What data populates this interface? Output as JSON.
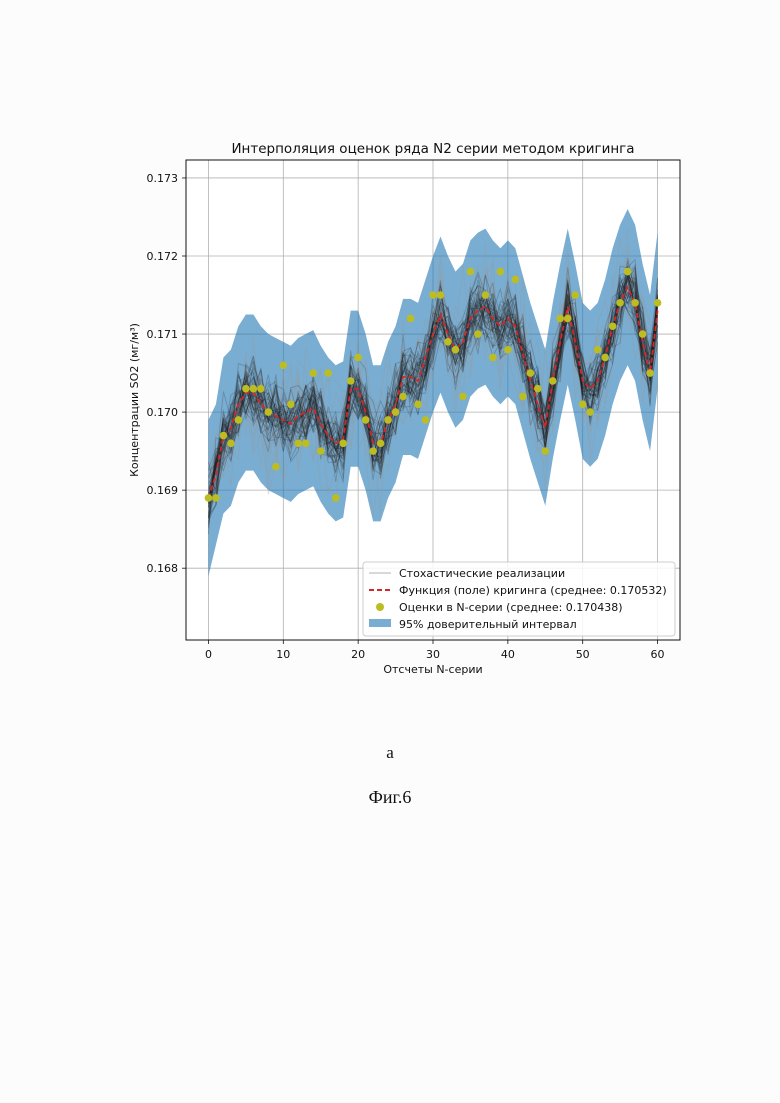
{
  "chart_data": {
    "type": "line",
    "title": "Интерполяция оценок ряда N2 серии методом кригинга",
    "xlabel": "Отсчеты N-серии",
    "ylabel": "Концентрации SO2 (мг/м³)",
    "xlim": [
      -3,
      63
    ],
    "ylim": [
      0.16708,
      0.17323
    ],
    "xticks": [
      0,
      10,
      20,
      30,
      40,
      50,
      60
    ],
    "yticks": [
      0.168,
      0.169,
      0.17,
      0.171,
      0.172,
      0.173
    ],
    "ytick_labels": [
      "0.168",
      "0.169",
      "0.170",
      "0.171",
      "0.172",
      "0.173"
    ],
    "grid": true,
    "legend_position": "lower-right",
    "legend": [
      "Стохастические реализации",
      "Функция (поле) кригинга (среднее: 0.170532)",
      "Оценки в N-серии (среднее: 0.170438)",
      "95% доверительный интервал"
    ],
    "colors": {
      "realizations": "#555555",
      "kriging": "#d62728",
      "estimates": "#bcbd22",
      "interval": "#1f77b4"
    },
    "series": [
      {
        "name": "Оценки в N-серии (среднее: 0.170438)",
        "kind": "scatter",
        "x": [
          0,
          1,
          2,
          3,
          4,
          5,
          6,
          7,
          8,
          9,
          10,
          11,
          12,
          13,
          14,
          15,
          16,
          17,
          18,
          19,
          20,
          21,
          22,
          23,
          24,
          25,
          26,
          27,
          28,
          29,
          30,
          31,
          32,
          33,
          34,
          35,
          36,
          37,
          38,
          39,
          40,
          41,
          42,
          43,
          44,
          45,
          46,
          47,
          48,
          49,
          50,
          51,
          52,
          53,
          54,
          55,
          56,
          57,
          58,
          59,
          60
        ],
        "y": [
          0.1689,
          0.1689,
          0.1697,
          0.1696,
          0.1699,
          0.1703,
          0.1703,
          0.1703,
          0.17,
          0.1693,
          0.1706,
          0.1701,
          0.1696,
          0.1696,
          0.1705,
          0.1695,
          0.1705,
          0.1689,
          0.1696,
          0.1704,
          0.1707,
          0.1699,
          0.1695,
          0.1696,
          0.1699,
          0.17,
          0.1702,
          0.1712,
          0.1701,
          0.1699,
          0.1715,
          0.1715,
          0.1709,
          0.1708,
          0.1702,
          0.1718,
          0.171,
          0.1715,
          0.1707,
          0.1718,
          0.1708,
          0.1717,
          0.1702,
          0.1705,
          0.1703,
          0.1695,
          0.1704,
          0.1712,
          0.1712,
          0.1715,
          0.1701,
          0.17,
          0.1708,
          0.1707,
          0.1711,
          0.1714,
          0.1718,
          0.1714,
          0.171,
          0.1705,
          0.1714
        ]
      },
      {
        "name": "Функция (поле) кригинга (среднее: 0.170532)",
        "kind": "line",
        "x": [
          0,
          1,
          2,
          3,
          4,
          5,
          6,
          7,
          8,
          9,
          10,
          11,
          12,
          13,
          14,
          15,
          16,
          17,
          18,
          19,
          20,
          21,
          22,
          23,
          24,
          25,
          26,
          27,
          28,
          29,
          30,
          31,
          32,
          33,
          34,
          35,
          36,
          37,
          38,
          39,
          40,
          41,
          42,
          43,
          44,
          45,
          46,
          47,
          48,
          49,
          50,
          51,
          52,
          53,
          54,
          55,
          56,
          57,
          58,
          59,
          60
        ],
        "y": [
          0.1689,
          0.1692,
          0.1697,
          0.1698,
          0.1701,
          0.17025,
          0.17025,
          0.1701,
          0.17,
          0.16995,
          0.1699,
          0.16985,
          0.16995,
          0.17,
          0.17005,
          0.16985,
          0.1697,
          0.1696,
          0.16965,
          0.1703,
          0.1703,
          0.17,
          0.1696,
          0.1696,
          0.1699,
          0.1701,
          0.17045,
          0.17045,
          0.1704,
          0.1707,
          0.171,
          0.17125,
          0.171,
          0.1708,
          0.1709,
          0.1712,
          0.1713,
          0.17135,
          0.1712,
          0.1711,
          0.1712,
          0.1711,
          0.17075,
          0.1704,
          0.1701,
          0.1698,
          0.1704,
          0.1709,
          0.17135,
          0.1709,
          0.1704,
          0.1703,
          0.1704,
          0.1707,
          0.1711,
          0.1714,
          0.1716,
          0.1714,
          0.1709,
          0.1705,
          0.1713
        ]
      },
      {
        "name": "95% доверительный интервал",
        "kind": "band",
        "x": [
          0,
          1,
          2,
          3,
          4,
          5,
          6,
          7,
          8,
          9,
          10,
          11,
          12,
          13,
          14,
          15,
          16,
          17,
          18,
          19,
          20,
          21,
          22,
          23,
          24,
          25,
          26,
          27,
          28,
          29,
          30,
          31,
          32,
          33,
          34,
          35,
          36,
          37,
          38,
          39,
          40,
          41,
          42,
          43,
          44,
          45,
          46,
          47,
          48,
          49,
          50,
          51,
          52,
          53,
          54,
          55,
          56,
          57,
          58,
          59,
          60
        ],
        "lower": [
          0.1679,
          0.1683,
          0.1687,
          0.1688,
          0.1691,
          0.16925,
          0.16925,
          0.1691,
          0.169,
          0.16895,
          0.1689,
          0.16885,
          0.16895,
          0.169,
          0.16905,
          0.16885,
          0.1687,
          0.1686,
          0.16865,
          0.1693,
          0.1693,
          0.169,
          0.1686,
          0.1686,
          0.1689,
          0.1691,
          0.16945,
          0.16945,
          0.1694,
          0.1697,
          0.17,
          0.17025,
          0.17,
          0.1698,
          0.1699,
          0.1702,
          0.1703,
          0.17035,
          0.1702,
          0.1701,
          0.1702,
          0.1701,
          0.16975,
          0.1694,
          0.1691,
          0.1688,
          0.1694,
          0.1699,
          0.17035,
          0.1699,
          0.1694,
          0.1693,
          0.1694,
          0.1697,
          0.1701,
          0.1704,
          0.1706,
          0.1704,
          0.1699,
          0.1695,
          0.1703
        ],
        "upper": [
          0.1699,
          0.1701,
          0.1707,
          0.1708,
          0.1711,
          0.17125,
          0.17125,
          0.1711,
          0.171,
          0.17095,
          0.1709,
          0.17085,
          0.17095,
          0.171,
          0.17105,
          0.17085,
          0.1707,
          0.1706,
          0.17065,
          0.1713,
          0.1713,
          0.171,
          0.1706,
          0.1706,
          0.1709,
          0.1711,
          0.17145,
          0.17145,
          0.1714,
          0.1717,
          0.172,
          0.17225,
          0.172,
          0.1718,
          0.1719,
          0.1722,
          0.1723,
          0.17235,
          0.1722,
          0.1721,
          0.1722,
          0.1721,
          0.17175,
          0.1714,
          0.1711,
          0.1708,
          0.1714,
          0.1719,
          0.17235,
          0.1719,
          0.1714,
          0.1713,
          0.1714,
          0.1717,
          0.1721,
          0.1724,
          0.1726,
          0.1724,
          0.1719,
          0.1715,
          0.1723
        ]
      }
    ]
  },
  "captions": {
    "sub": "а",
    "figure": "Фиг.6"
  }
}
